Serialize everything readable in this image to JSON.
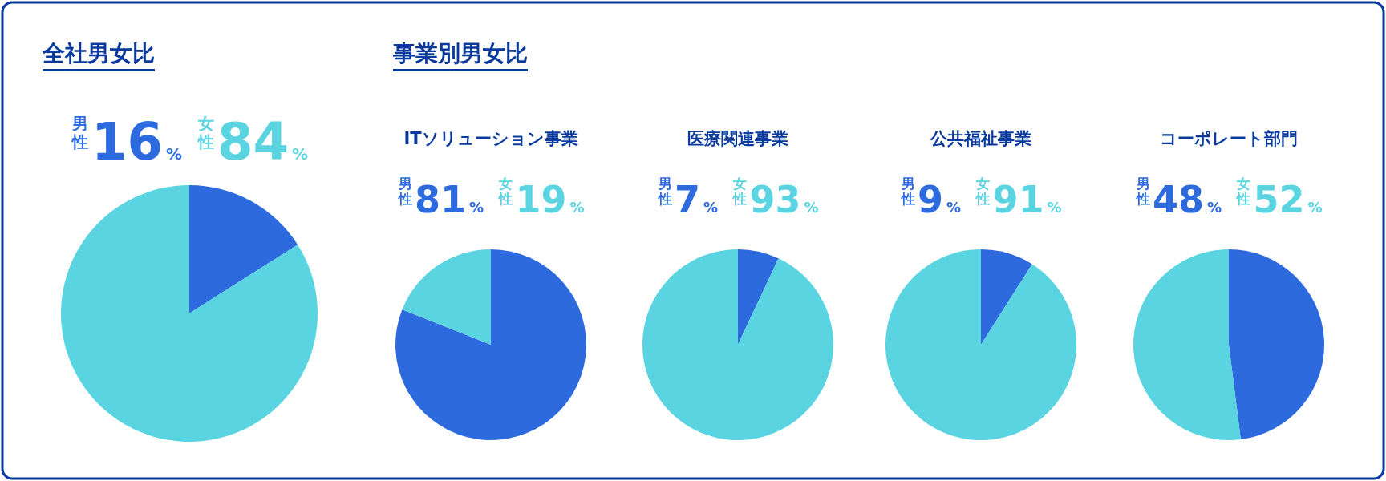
{
  "chart_data": [
    {
      "type": "pie",
      "title": "全社男女比",
      "categories": [
        "男性",
        "女性"
      ],
      "values": [
        16,
        84
      ],
      "colors": [
        "#2d6ade",
        "#59d4e0"
      ],
      "data_labels": true,
      "value_labels": [
        "16%",
        "84%"
      ]
    },
    {
      "type": "pie",
      "subtitle": "事業別男女比",
      "title": "ITソリューション事業",
      "categories": [
        "男性",
        "女性"
      ],
      "values": [
        81,
        19
      ],
      "colors": [
        "#2d6ade",
        "#59d4e0"
      ],
      "data_labels": true,
      "value_labels": [
        "81%",
        "19%"
      ]
    },
    {
      "type": "pie",
      "title": "医療関連事業",
      "categories": [
        "男性",
        "女性"
      ],
      "values": [
        7,
        93
      ],
      "colors": [
        "#2d6ade",
        "#59d4e0"
      ],
      "data_labels": true,
      "value_labels": [
        "7%",
        "93%"
      ]
    },
    {
      "type": "pie",
      "title": "公共福祉事業",
      "categories": [
        "男性",
        "女性"
      ],
      "values": [
        9,
        91
      ],
      "colors": [
        "#2d6ade",
        "#59d4e0"
      ],
      "data_labels": true,
      "value_labels": [
        "9%",
        "91%"
      ]
    },
    {
      "type": "pie",
      "title": "コーポレート部門",
      "categories": [
        "男性",
        "女性"
      ],
      "values": [
        48,
        52
      ],
      "colors": [
        "#2d6ade",
        "#59d4e0"
      ],
      "data_labels": true,
      "value_labels": [
        "48%",
        "52%"
      ]
    }
  ]
}
